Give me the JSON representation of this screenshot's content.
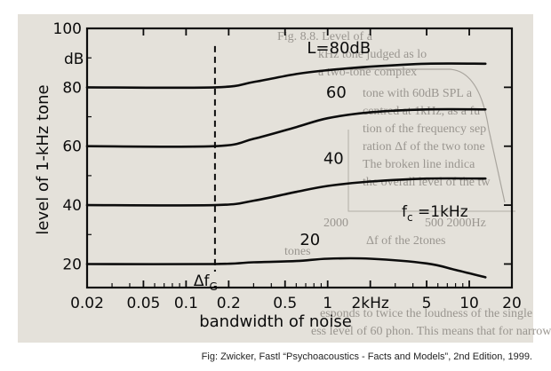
{
  "chart_data": {
    "type": "line",
    "title": "",
    "xlabel": "bandwidth of noise",
    "ylabel": "level of 1-kHz tone",
    "y_unit": "dB",
    "x_scale": "log",
    "x_ticks": [
      {
        "value": 0.02,
        "label": "0.02"
      },
      {
        "value": 0.05,
        "label": "0.05"
      },
      {
        "value": 0.1,
        "label": "0.1"
      },
      {
        "value": 0.2,
        "label": "0.2"
      },
      {
        "value": 0.5,
        "label": "0.5"
      },
      {
        "value": 1,
        "label": "1"
      },
      {
        "value": 2,
        "label": "2kHz"
      },
      {
        "value": 5,
        "label": "5"
      },
      {
        "value": 10,
        "label": "10"
      },
      {
        "value": 20,
        "label": "20"
      }
    ],
    "y_ticks": [
      {
        "value": 20,
        "label": "20"
      },
      {
        "value": 40,
        "label": "40"
      },
      {
        "value": 60,
        "label": "60"
      },
      {
        "value": 80,
        "label": "80"
      },
      {
        "value": 100,
        "label": "100"
      }
    ],
    "xlim": [
      0.02,
      20
    ],
    "ylim": [
      12,
      100
    ],
    "reference_line": {
      "x": 0.16,
      "label": "Δf",
      "subscript": "G",
      "style": "dashed"
    },
    "annotation": {
      "text": "f",
      "subscript": "c",
      "value": " =1kHz"
    },
    "series": [
      {
        "name": "L=80dB",
        "points": [
          [
            0.02,
            80
          ],
          [
            0.16,
            80
          ],
          [
            0.3,
            81.8
          ],
          [
            0.6,
            84.5
          ],
          [
            1,
            85.8
          ],
          [
            2,
            87
          ],
          [
            5,
            88
          ],
          [
            13,
            88
          ]
        ]
      },
      {
        "name": "60",
        "points": [
          [
            0.02,
            60
          ],
          [
            0.16,
            60
          ],
          [
            0.3,
            62.5
          ],
          [
            0.6,
            66.5
          ],
          [
            1,
            69.5
          ],
          [
            2,
            71.5
          ],
          [
            5,
            72.5
          ],
          [
            13,
            72.5
          ]
        ]
      },
      {
        "name": "40",
        "points": [
          [
            0.02,
            40
          ],
          [
            0.16,
            40
          ],
          [
            0.3,
            41.5
          ],
          [
            0.6,
            44.5
          ],
          [
            1,
            46.5
          ],
          [
            2,
            48
          ],
          [
            5,
            49
          ],
          [
            13,
            49
          ]
        ]
      },
      {
        "name": "20",
        "points": [
          [
            0.02,
            20
          ],
          [
            0.16,
            20
          ],
          [
            0.3,
            20.6
          ],
          [
            0.6,
            21
          ],
          [
            1,
            21.8
          ],
          [
            2,
            21.8
          ],
          [
            5,
            20.2
          ],
          [
            8,
            18
          ],
          [
            13,
            15.5
          ]
        ]
      }
    ]
  },
  "caption": "Fig: Zwicker, Fastl “Psychoacoustics - Facts and Models”, 2nd Edition, 1999.",
  "background_text": [
    "Fig. 8.8. Level of a",
    "kHz tone judged as lo",
    "a two-tone complex",
    "tone with 60dB SPL a",
    "centred at 1kHz, as a fu",
    "tion of the frequency sep",
    "ration Δf of the two tone",
    "The broken line indica",
    "the overall level of the tw",
    "tones",
    "2000",
    "500  2000Hz",
    "Δf of the 2tones",
    "esponds to twice the loudness of the single",
    "ess level of 60 phon. This means that for narrow"
  ],
  "colors": {
    "ink": "#0c0c0c",
    "paper": "#e4e1da",
    "faded": "#9a9690"
  }
}
